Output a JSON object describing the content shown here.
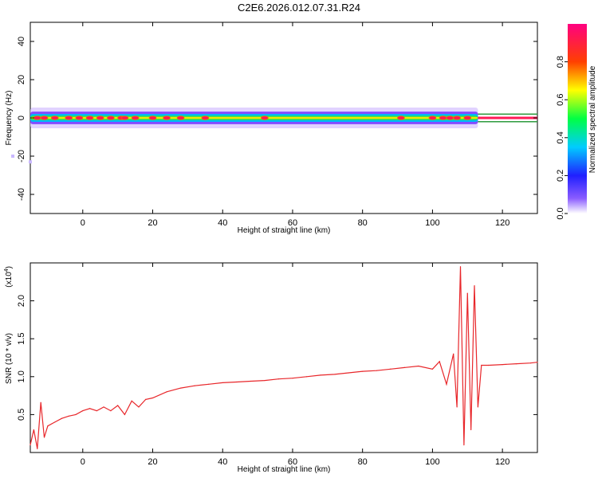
{
  "title": "C2E6.2026.012.07.31.R24",
  "chart_data": [
    {
      "type": "heatmap",
      "title": "C2E6.2026.012.07.31.R24",
      "xlabel": "Height of straight line (km)",
      "ylabel": "Frequency (Hz)",
      "xlim": [
        -15,
        130
      ],
      "ylim": [
        -50,
        50
      ],
      "x_ticks": [
        0,
        20,
        40,
        60,
        80,
        100,
        120
      ],
      "y_ticks": [
        -40,
        -20,
        0,
        20,
        40
      ],
      "colorbar": {
        "label": "Normalized spectral amplitude",
        "range": [
          0,
          1
        ],
        "ticks": [
          0.0,
          0.2,
          0.4,
          0.6,
          0.8
        ],
        "tick_labels": [
          "0.0",
          "0.2",
          "0.4",
          "0.6",
          "0.8"
        ]
      },
      "band": {
        "x_start": -15,
        "x_end": 113,
        "center_freq": 0,
        "half_width_hz": 3,
        "reference_lines_hz": [
          2,
          -2
        ],
        "reference_x_start": 113,
        "reference_x_end": 130,
        "hotspots_x": [
          -13,
          -11,
          -8,
          -4,
          -1,
          2,
          5,
          8,
          11,
          12,
          15,
          20,
          24,
          28,
          35,
          52,
          91,
          100,
          103,
          105,
          107,
          110
        ],
        "stray_points": [
          [
            -20,
            -20
          ],
          [
            -15,
            -23
          ]
        ]
      },
      "colors": {
        "reference_line": "#2e9b3e"
      }
    },
    {
      "type": "line",
      "xlabel": "Height of straight line (km)",
      "ylabel": "SNR (10 * v/v)",
      "y_multiplier_label": "(x10",
      "y_multiplier_exp": "4",
      "y_multiplier_close": ")",
      "xlim": [
        -15,
        130
      ],
      "ylim": [
        0,
        2.5
      ],
      "x_ticks": [
        0,
        20,
        40,
        60,
        80,
        100,
        120
      ],
      "y_ticks": [
        0.5,
        1.0,
        1.5,
        2.0
      ],
      "y_tick_labels": [
        "0.5",
        "1.0",
        "1.5",
        "2.0"
      ],
      "series": [
        {
          "color": "#e8262a",
          "x": [
            -15,
            -14,
            -13,
            -12,
            -11,
            -10,
            -8,
            -6,
            -4,
            -2,
            0,
            2,
            4,
            6,
            8,
            10,
            12,
            14,
            16,
            18,
            20,
            24,
            28,
            32,
            36,
            40,
            44,
            48,
            52,
            56,
            60,
            64,
            68,
            72,
            76,
            80,
            84,
            88,
            92,
            96,
            100,
            102,
            104,
            106,
            107,
            108,
            109,
            110,
            111,
            112,
            113,
            114,
            116,
            120,
            124,
            128,
            130
          ],
          "y": [
            0.1,
            0.3,
            0.05,
            0.66,
            0.2,
            0.35,
            0.4,
            0.45,
            0.48,
            0.5,
            0.55,
            0.58,
            0.55,
            0.6,
            0.55,
            0.62,
            0.5,
            0.68,
            0.6,
            0.7,
            0.72,
            0.8,
            0.85,
            0.88,
            0.9,
            0.92,
            0.93,
            0.94,
            0.95,
            0.97,
            0.98,
            1.0,
            1.02,
            1.03,
            1.05,
            1.07,
            1.08,
            1.1,
            1.12,
            1.14,
            1.1,
            1.2,
            0.9,
            1.3,
            0.6,
            2.45,
            0.1,
            2.1,
            0.3,
            2.2,
            0.6,
            1.15,
            1.15,
            1.16,
            1.17,
            1.18,
            1.19
          ]
        }
      ]
    }
  ]
}
